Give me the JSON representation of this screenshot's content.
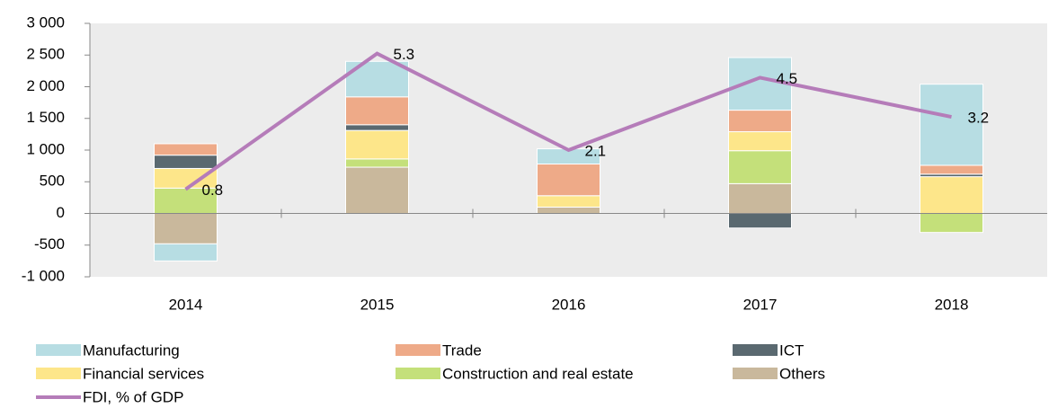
{
  "chart_data": {
    "type": "bar",
    "categories": [
      "2014",
      "2015",
      "2016",
      "2017",
      "2018"
    ],
    "stacked": true,
    "series": [
      {
        "name": "Manufacturing",
        "color": "#b7dde3",
        "values": [
          -270,
          560,
          240,
          830,
          1280
        ]
      },
      {
        "name": "Trade",
        "color": "#eeaa88",
        "values": [
          180,
          440,
          500,
          340,
          140
        ]
      },
      {
        "name": "ICT",
        "color": "#5a6970",
        "values": [
          210,
          90,
          0,
          -230,
          40
        ]
      },
      {
        "name": "Financial services",
        "color": "#fde68a",
        "values": [
          310,
          450,
          180,
          300,
          580
        ]
      },
      {
        "name": "Construction and real estate",
        "color": "#c4e07a",
        "values": [
          400,
          130,
          0,
          520,
          -300
        ]
      },
      {
        "name": "Others",
        "color": "#c9b89c",
        "values": [
          -480,
          730,
          100,
          470,
          0
        ]
      },
      {
        "name": "FDI, % of GDP",
        "type": "line",
        "axis": "y2",
        "color": "#b57cb9",
        "values": [
          0.8,
          5.3,
          2.1,
          4.5,
          3.2
        ]
      }
    ],
    "ylim": [
      -1000,
      3000
    ],
    "yticks": [
      {
        "value": 3000,
        "label": "3 000"
      },
      {
        "value": 2500,
        "label": "2 500"
      },
      {
        "value": 2000,
        "label": "2 000"
      },
      {
        "value": 1500,
        "label": "1 500"
      },
      {
        "value": 1000,
        "label": "1 000"
      },
      500,
      0,
      -500,
      {
        "value": -1000,
        "label": "-1 000"
      }
    ],
    "y2lim": [
      -2.1,
      6.3
    ],
    "legend": "bottom"
  }
}
